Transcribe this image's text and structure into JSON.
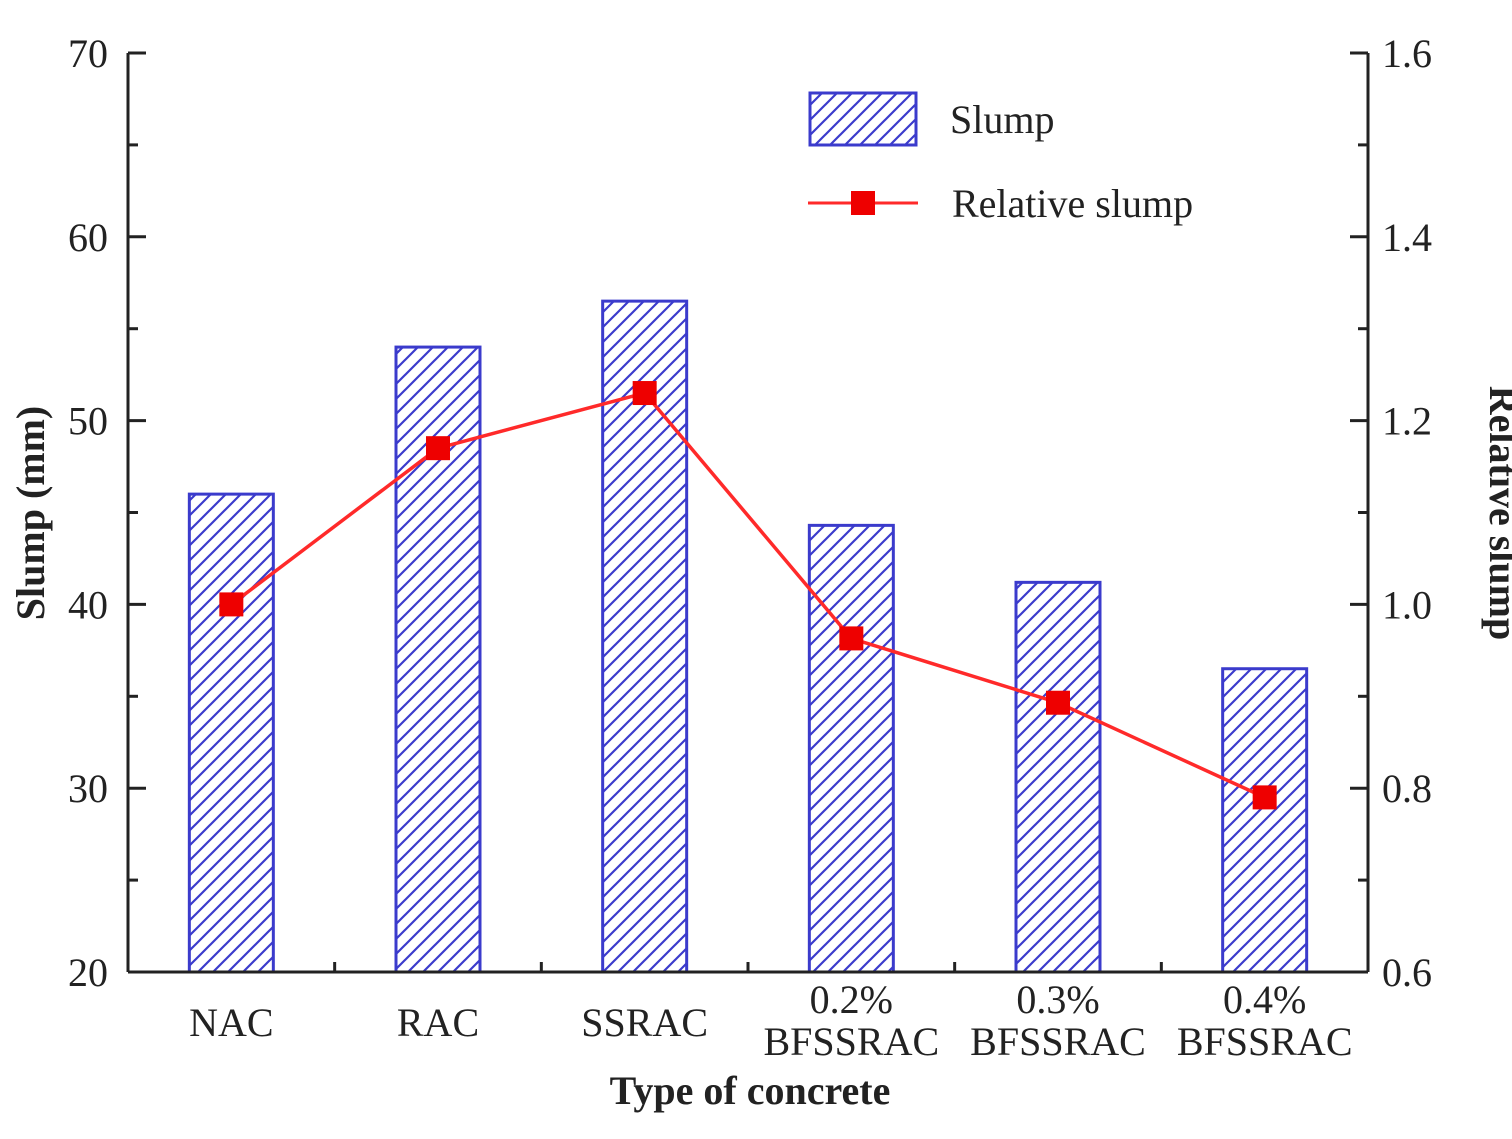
{
  "chart_data": {
    "type": "bar",
    "categories": [
      [
        "NAC"
      ],
      [
        "RAC"
      ],
      [
        "SSRAC"
      ],
      [
        "0.2%",
        "BFSSRAC"
      ],
      [
        "0.3%",
        "BFSSRAC"
      ],
      [
        "0.4%",
        "BFSSRAC"
      ]
    ],
    "series": [
      {
        "name": "Slump",
        "kind": "bar",
        "axis": "left",
        "values": [
          46,
          54,
          56.5,
          44.3,
          41.2,
          36.5
        ]
      },
      {
        "name": "Relative slump",
        "kind": "line",
        "axis": "right",
        "values": [
          1.0,
          1.17,
          1.23,
          0.963,
          0.893,
          0.79
        ]
      }
    ],
    "xlabel": "Type of concrete",
    "ylabel": "Slump (mm)",
    "y2label": "Relative slump",
    "ylim": [
      20,
      70
    ],
    "y2lim": [
      0.6,
      1.6
    ],
    "yticks": [
      "20",
      "30",
      "40",
      "50",
      "60",
      "70"
    ],
    "y2ticks": [
      "0.6",
      "0.8",
      "1.0",
      "1.2",
      "1.4",
      "1.6"
    ],
    "legend_position": "top-right",
    "grid": false,
    "colors": {
      "bar_stroke": "#3b3bcc",
      "bar_hatch": "#3b3bcc",
      "line": "#ff2a2a",
      "marker": "#ee0000",
      "axis": "#222222"
    }
  }
}
